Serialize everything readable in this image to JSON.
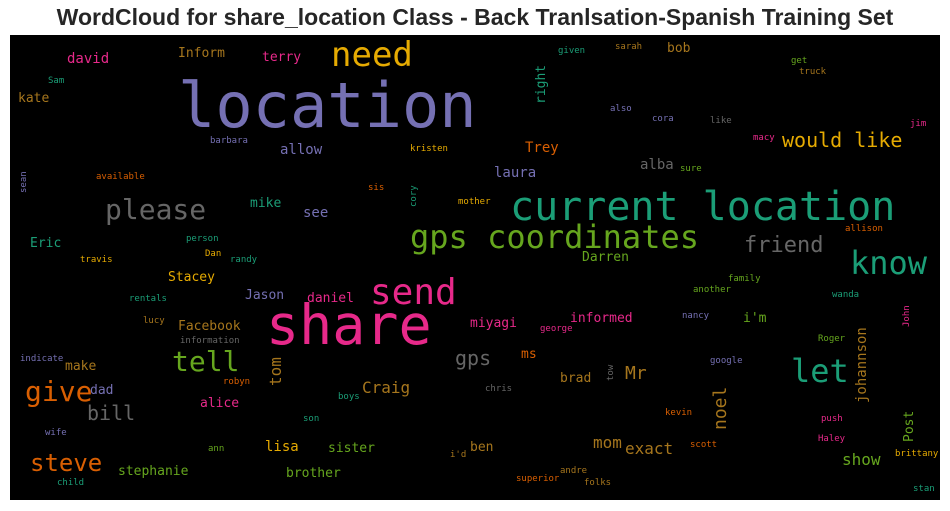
{
  "chart_data": {
    "type": "wordcloud",
    "title": "WordCloud for share_location Class - Back Tranlsation-Spanish Training Set",
    "background": "#000000",
    "words": [
      {
        "text": "location",
        "color": "#7570b3"
      },
      {
        "text": "current location",
        "color": "#1b9e77"
      },
      {
        "text": "share",
        "color": "#e7298a"
      },
      {
        "text": "gps coordinates",
        "color": "#66a61e"
      },
      {
        "text": "need",
        "color": "#e6ab02"
      },
      {
        "text": "send",
        "color": "#e7298a"
      },
      {
        "text": "know",
        "color": "#1b9e77"
      },
      {
        "text": "please",
        "color": "#666666"
      },
      {
        "text": "let",
        "color": "#1b9e77"
      },
      {
        "text": "tell",
        "color": "#66a61e"
      },
      {
        "text": "give",
        "color": "#d95f02"
      },
      {
        "text": "steve",
        "color": "#d95f02"
      },
      {
        "text": "friend",
        "color": "#666666"
      },
      {
        "text": "would like",
        "color": "#e6ab02"
      },
      {
        "text": "bill",
        "color": "#666666"
      },
      {
        "text": "gps",
        "color": "#666666"
      },
      {
        "text": "Craig",
        "color": "#a6761d"
      },
      {
        "text": "Mr",
        "color": "#a6761d"
      },
      {
        "text": "noel",
        "color": "#a6761d"
      },
      {
        "text": "tom",
        "color": "#a6761d"
      },
      {
        "text": "show",
        "color": "#66a61e"
      },
      {
        "text": "exact",
        "color": "#a6761d"
      },
      {
        "text": "mom",
        "color": "#a6761d"
      },
      {
        "text": "johannson",
        "color": "#a6761d"
      },
      {
        "text": "allow",
        "color": "#7570b3"
      },
      {
        "text": "see",
        "color": "#7570b3"
      },
      {
        "text": "Trey",
        "color": "#d95f02"
      },
      {
        "text": "lisa",
        "color": "#e6ab02"
      },
      {
        "text": "alba",
        "color": "#666666"
      },
      {
        "text": "laura",
        "color": "#7570b3"
      },
      {
        "text": "mike",
        "color": "#1b9e77"
      },
      {
        "text": "david",
        "color": "#e7298a"
      },
      {
        "text": "Inform",
        "color": "#a6761d"
      },
      {
        "text": "terry",
        "color": "#e7298a"
      },
      {
        "text": "bob",
        "color": "#a6761d"
      },
      {
        "text": "kate",
        "color": "#a6761d"
      },
      {
        "text": "right",
        "color": "#1b9e77"
      },
      {
        "text": "Eric",
        "color": "#1b9e77"
      },
      {
        "text": "Darren",
        "color": "#66a61e"
      },
      {
        "text": "Stacey",
        "color": "#e6ab02"
      },
      {
        "text": "Jason",
        "color": "#7570b3"
      },
      {
        "text": "daniel",
        "color": "#e7298a"
      },
      {
        "text": "Facebook",
        "color": "#a6761d"
      },
      {
        "text": "informed",
        "color": "#e7298a"
      },
      {
        "text": "miyagi",
        "color": "#e7298a"
      },
      {
        "text": "i'm",
        "color": "#66a61e"
      },
      {
        "text": "make",
        "color": "#a6761d"
      },
      {
        "text": "dad",
        "color": "#7570b3"
      },
      {
        "text": "ms",
        "color": "#d95f02"
      },
      {
        "text": "brad",
        "color": "#a6761d"
      },
      {
        "text": "alice",
        "color": "#e7298a"
      },
      {
        "text": "sister",
        "color": "#66a61e"
      },
      {
        "text": "brother",
        "color": "#66a61e"
      },
      {
        "text": "stephanie",
        "color": "#66a61e"
      },
      {
        "text": "ben",
        "color": "#a6761d"
      },
      {
        "text": "Post",
        "color": "#66a61e"
      },
      {
        "text": "Sam",
        "color": "#1b9e77"
      },
      {
        "text": "given",
        "color": "#1b9e77"
      },
      {
        "text": "sarah",
        "color": "#a6761d"
      },
      {
        "text": "get",
        "color": "#66a61e"
      },
      {
        "text": "truck",
        "color": "#a6761d"
      },
      {
        "text": "also",
        "color": "#7570b3"
      },
      {
        "text": "cora",
        "color": "#7570b3"
      },
      {
        "text": "like",
        "color": "#666666"
      },
      {
        "text": "macy",
        "color": "#e7298a"
      },
      {
        "text": "jim",
        "color": "#e7298a"
      },
      {
        "text": "barbara",
        "color": "#7570b3"
      },
      {
        "text": "kristen",
        "color": "#e6ab02"
      },
      {
        "text": "sean",
        "color": "#7570b3"
      },
      {
        "text": "available",
        "color": "#d95f02"
      },
      {
        "text": "sis",
        "color": "#d95f02"
      },
      {
        "text": "cory",
        "color": "#1b9e77"
      },
      {
        "text": "mother",
        "color": "#e6ab02"
      },
      {
        "text": "sure",
        "color": "#66a61e"
      },
      {
        "text": "person",
        "color": "#1b9e77"
      },
      {
        "text": "Dan",
        "color": "#e6ab02"
      },
      {
        "text": "randy",
        "color": "#1b9e77"
      },
      {
        "text": "travis",
        "color": "#e6ab02"
      },
      {
        "text": "allison",
        "color": "#d95f02"
      },
      {
        "text": "family",
        "color": "#66a61e"
      },
      {
        "text": "another",
        "color": "#66a61e"
      },
      {
        "text": "rentals",
        "color": "#1b9e77"
      },
      {
        "text": "wanda",
        "color": "#1b9e77"
      },
      {
        "text": "lucy",
        "color": "#a6761d"
      },
      {
        "text": "nancy",
        "color": "#7570b3"
      },
      {
        "text": "John",
        "color": "#e7298a"
      },
      {
        "text": "information",
        "color": "#666666"
      },
      {
        "text": "george",
        "color": "#e7298a"
      },
      {
        "text": "Roger",
        "color": "#66a61e"
      },
      {
        "text": "indicate",
        "color": "#7570b3"
      },
      {
        "text": "robyn",
        "color": "#d95f02"
      },
      {
        "text": "tow",
        "color": "#666666"
      },
      {
        "text": "chris",
        "color": "#666666"
      },
      {
        "text": "google",
        "color": "#7570b3"
      },
      {
        "text": "boys",
        "color": "#1b9e77"
      },
      {
        "text": "son",
        "color": "#1b9e77"
      },
      {
        "text": "kevin",
        "color": "#d95f02"
      },
      {
        "text": "push",
        "color": "#e7298a"
      },
      {
        "text": "wife",
        "color": "#7570b3"
      },
      {
        "text": "ann",
        "color": "#66a61e"
      },
      {
        "text": "i'd",
        "color": "#a6761d"
      },
      {
        "text": "scott",
        "color": "#d95f02"
      },
      {
        "text": "Haley",
        "color": "#e7298a"
      },
      {
        "text": "brittany",
        "color": "#e6ab02"
      },
      {
        "text": "andre",
        "color": "#a6761d"
      },
      {
        "text": "superior",
        "color": "#d95f02"
      },
      {
        "text": "folks",
        "color": "#a6761d"
      },
      {
        "text": "child",
        "color": "#1b9e77"
      },
      {
        "text": "stan",
        "color": "#1b9e77"
      }
    ]
  }
}
